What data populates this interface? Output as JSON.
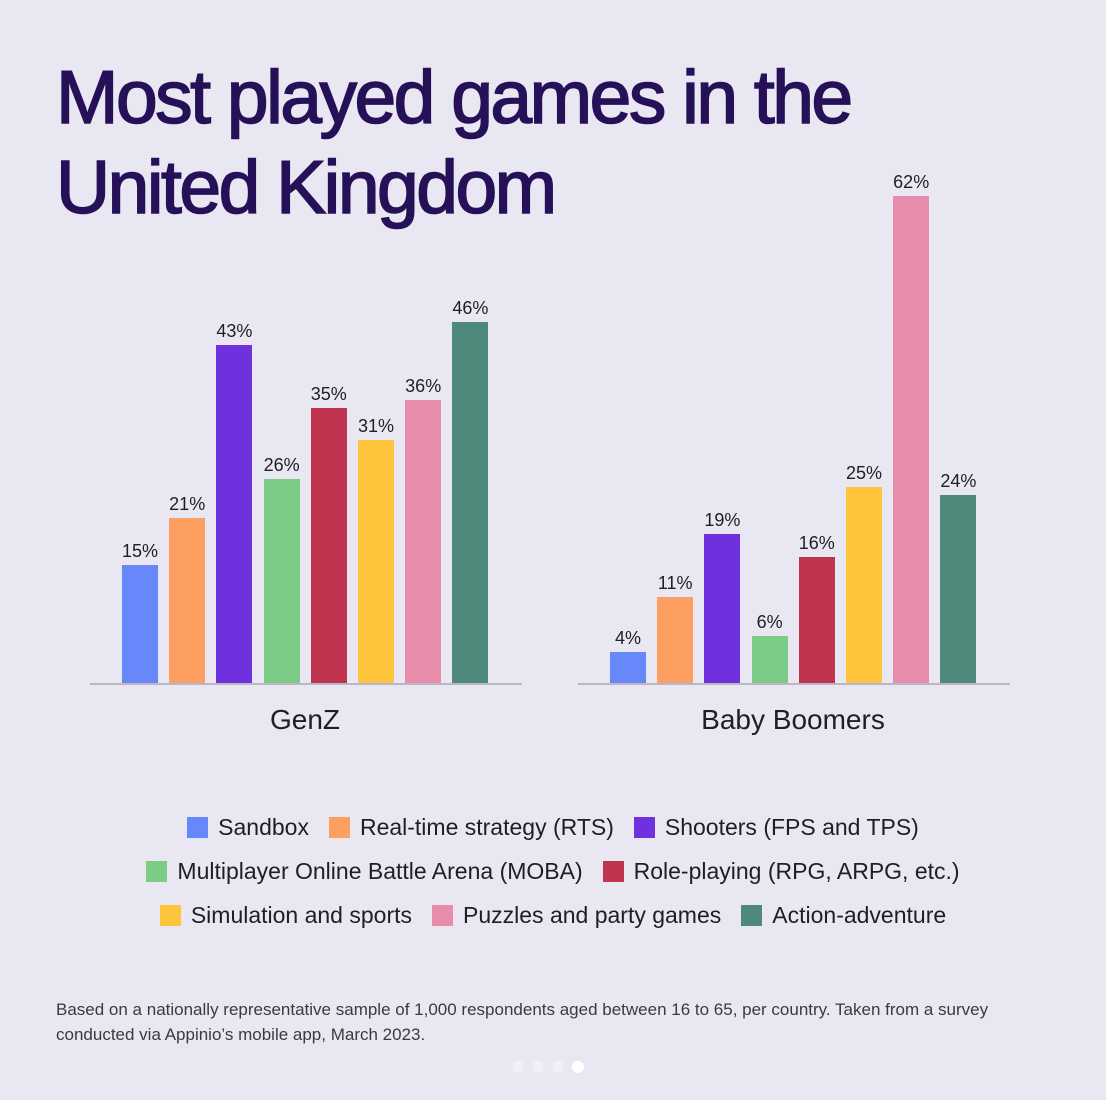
{
  "title_line1": "Most played games in the",
  "title_line2": "United Kingdom",
  "chart_data": {
    "type": "bar",
    "title": "Most played games in the United Kingdom",
    "categories": [
      "GenZ",
      "Baby Boomers"
    ],
    "series": [
      {
        "name": "Sandbox",
        "color": "#6688fb",
        "values": [
          15,
          4
        ]
      },
      {
        "name": "Real-time strategy (RTS)",
        "color": "#fd9f61",
        "values": [
          21,
          11
        ]
      },
      {
        "name": "Shooters (FPS and TPS)",
        "color": "#6e31dd",
        "values": [
          43,
          19
        ]
      },
      {
        "name": "Multiplayer Online Battle Arena (MOBA)",
        "color": "#7bcd86",
        "values": [
          26,
          6
        ]
      },
      {
        "name": "Role-playing (RPG, ARPG, etc.)",
        "color": "#c1344f",
        "values": [
          35,
          16
        ]
      },
      {
        "name": "Simulation and sports",
        "color": "#fdc43c",
        "values": [
          31,
          25
        ]
      },
      {
        "name": "Puzzles and party games",
        "color": "#e78dab",
        "values": [
          36,
          62
        ]
      },
      {
        "name": "Action-adventure",
        "color": "#4e897b",
        "values": [
          46,
          24
        ]
      }
    ],
    "xlabel": "",
    "ylabel": "",
    "ylim": [
      0,
      65
    ],
    "grid": false,
    "legend_position": "bottom",
    "value_labels": true
  },
  "groups": [
    {
      "label": "GenZ",
      "value_labels": [
        "15%",
        "21%",
        "43%",
        "26%",
        "35%",
        "31%",
        "36%",
        "46%"
      ]
    },
    {
      "label": "Baby Boomers",
      "value_labels": [
        "4%",
        "11%",
        "19%",
        "6%",
        "16%",
        "25%",
        "62%",
        "24%"
      ]
    }
  ],
  "legend": [
    {
      "label": "Sandbox",
      "color": "#6688fb"
    },
    {
      "label": "Real-time strategy (RTS)",
      "color": "#fd9f61"
    },
    {
      "label": "Shooters (FPS and TPS)",
      "color": "#6e31dd"
    },
    {
      "label": "Multiplayer Online Battle Arena (MOBA)",
      "color": "#7bcd86"
    },
    {
      "label": "Role-playing (RPG, ARPG, etc.)",
      "color": "#c1344f"
    },
    {
      "label": "Simulation and sports",
      "color": "#fdc43c"
    },
    {
      "label": "Puzzles and party games",
      "color": "#e78dab"
    },
    {
      "label": "Action-adventure",
      "color": "#4e897b"
    }
  ],
  "footnote": "Based on a nationally representative sample of 1,000 respondents aged between 16 to 65, per country. Taken from a survey conducted via Appinio’s mobile app, March 2023.",
  "pagination": {
    "total": 4,
    "active": 4
  }
}
